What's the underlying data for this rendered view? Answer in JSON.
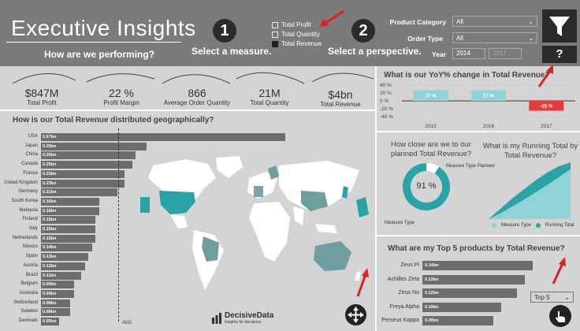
{
  "header": {
    "title": "Executive Insights",
    "subtitle": "How are we performing?",
    "step1": {
      "number": "1",
      "caption": "Select a measure."
    },
    "step2": {
      "number": "2",
      "caption": "Select a perspective."
    },
    "measures": [
      {
        "label": "Total Profit",
        "checked": false
      },
      {
        "label": "Total Quantity",
        "checked": false
      },
      {
        "label": "Total Revenue",
        "checked": true
      }
    ],
    "slicers": {
      "product_category_label": "Product Category",
      "product_category_value": "All",
      "order_type_label": "Order Type",
      "order_type_value": "All",
      "year_label": "Year",
      "year_from": "2014",
      "year_to": "2017"
    },
    "help_label": "?"
  },
  "kpis": [
    {
      "value": "$847M",
      "label": "Total Profit"
    },
    {
      "value": "22 %",
      "label": "Profit Margin"
    },
    {
      "value": "866",
      "label": "Average Order Quantity"
    },
    {
      "value": "21M",
      "label": "Total Quantity"
    },
    {
      "value": "$4bn",
      "label": "Total Revenue"
    }
  ],
  "geo": {
    "title": "How is our Total Revenue distributed geographically?",
    "avg_label": "AVG"
  },
  "yoy": {
    "title": "What is our YoY% change in Total Revenue?"
  },
  "planned": {
    "title": "How close are we to our planned Total Revenue?",
    "center_label": "91 %",
    "legend_planned": "Measure Type Planned",
    "legend_type": "Measure Type"
  },
  "running": {
    "title": "What is my Running Total by Total Revenue?",
    "legend_a": "Measure Type",
    "legend_b": "Running Total"
  },
  "top5": {
    "title": "What are my Top 5 products by Total Revenue?",
    "selector": "Top 5"
  },
  "brand": {
    "name": "DecisiveData",
    "tagline": "insights for decisions"
  },
  "colors": {
    "header_bg": "#7b7b7b",
    "bar": "#6d6d6d",
    "teal": "#2aa3a8",
    "teal_light": "#8fd3d6",
    "negative": "#e83a3a"
  },
  "chart_data": [
    {
      "type": "bar",
      "orientation": "horizontal",
      "title": "How is our Total Revenue distributed geographically?",
      "categories": [
        "USA",
        "Japan",
        "China",
        "Canada",
        "France",
        "United Kingdom",
        "Germany",
        "South Korea",
        "Malaysia",
        "Finland",
        "Italy",
        "Netherlands",
        "Mexico",
        "Spain",
        "Austria",
        "Brazil",
        "Belgium",
        "Australia",
        "Switzerland",
        "Sweden",
        "Denmark"
      ],
      "values": [
        0.67,
        0.29,
        0.26,
        0.25,
        0.23,
        0.23,
        0.21,
        0.16,
        0.16,
        0.15,
        0.15,
        0.15,
        0.14,
        0.13,
        0.12,
        0.11,
        0.09,
        0.09,
        0.08,
        0.08,
        0.05
      ],
      "data_labels": [
        "0.67bn",
        "0.29bn",
        "0.26bn",
        "0.25bn",
        "0.23bn",
        "0.23bn",
        "0.21bn",
        "0.16bn",
        "0.16bn",
        "0.15bn",
        "0.15bn",
        "0.15bn",
        "0.14bn",
        "0.13bn",
        "0.12bn",
        "0.11bn",
        "0.09bn",
        "0.09bn",
        "0.08bn",
        "0.08bn",
        "0.05bn"
      ],
      "xlim": [
        0,
        0.8
      ]
    },
    {
      "type": "bar",
      "title": "What is our YoY% change in Total Revenue?",
      "categories": [
        "2015",
        "2016",
        "2017"
      ],
      "values": [
        27,
        27,
        -25
      ],
      "data_labels": [
        "27 %",
        "27 %",
        "-25 %"
      ],
      "y_ticks": [
        "40 %",
        "20 %",
        "0 %",
        "-20 %",
        "-40 %"
      ],
      "ylim": [
        -40,
        40
      ]
    },
    {
      "type": "pie",
      "title": "How close are we to our planned Total Revenue?",
      "values": [
        91,
        9
      ],
      "center_label": "91 %"
    },
    {
      "type": "area",
      "title": "What is my Running Total by Total Revenue?",
      "series": [
        {
          "name": "Measure Type",
          "values": [
            0,
            0.1,
            0.22,
            0.34,
            0.47,
            0.6,
            0.74,
            0.88
          ]
        },
        {
          "name": "Running Total",
          "values": [
            0,
            0.18,
            0.36,
            0.52,
            0.68,
            0.82,
            0.93,
            1.0
          ]
        }
      ]
    },
    {
      "type": "bar",
      "orientation": "horizontal",
      "title": "What are my Top 5 products by Total Revenue?",
      "categories": [
        "Zeus Pi",
        "Achilles Zeta",
        "Zeus Nu",
        "Freya Alpha",
        "Perseus Kappa"
      ],
      "values": [
        0.14,
        0.13,
        0.12,
        0.1,
        0.09
      ],
      "data_labels": [
        "0.14bn",
        "0.13bn",
        "0.12bn",
        "0.10bn",
        "0.09bn"
      ]
    }
  ]
}
